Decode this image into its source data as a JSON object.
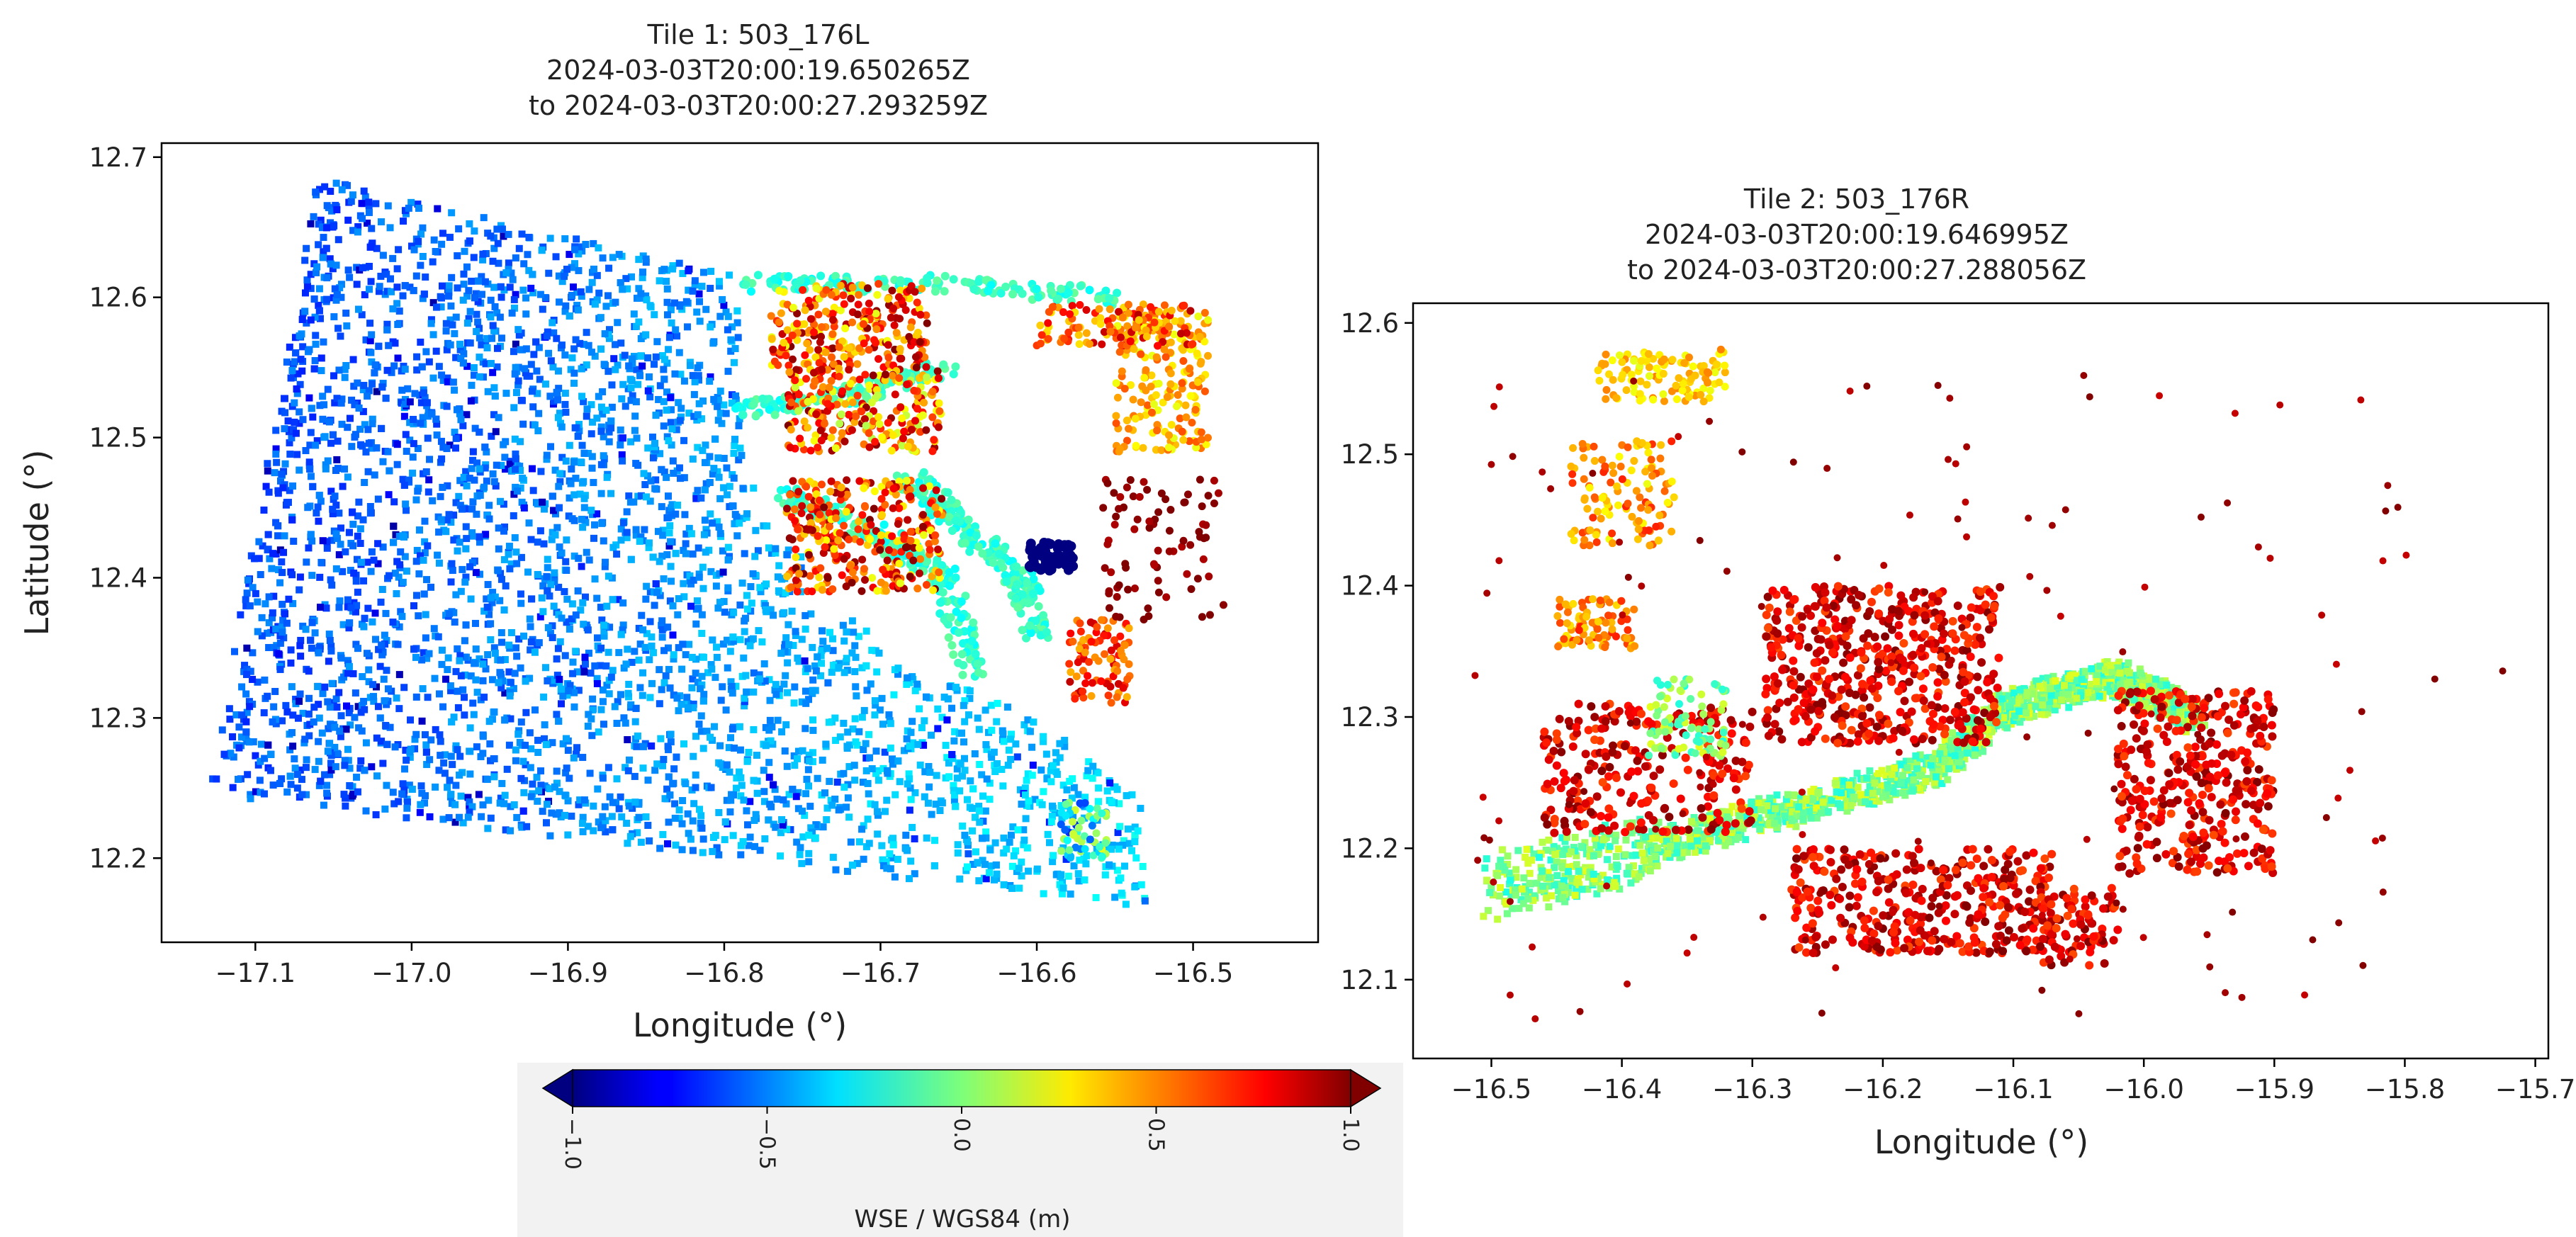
{
  "chart_data": [
    {
      "type": "scatter",
      "title": [
        "Tile 1: 503_176L",
        "2024-03-03T20:00:19.650265Z",
        "to 2024-03-03T20:00:27.293259Z"
      ],
      "xlabel": "Longitude (°)",
      "ylabel": "Latitude (°)",
      "xlim": [
        -17.16,
        -16.42
      ],
      "ylim": [
        12.14,
        12.71
      ],
      "xticks": [
        -17.1,
        -17.0,
        -16.9,
        -16.8,
        -16.7,
        -16.6,
        -16.5
      ],
      "xtick_labels": [
        "−17.1",
        "−17.0",
        "−16.9",
        "−16.8",
        "−16.7",
        "−16.6",
        "−16.5"
      ],
      "yticks": [
        12.2,
        12.3,
        12.4,
        12.5,
        12.6,
        12.7
      ],
      "ytick_labels": [
        "12.2",
        "12.3",
        "12.4",
        "12.5",
        "12.6",
        "12.7"
      ],
      "grid": false,
      "swath_extent": [
        [
          -17.06,
          12.685
        ],
        [
          -16.53,
          12.585
        ],
        [
          -16.53,
          12.165
        ],
        [
          -17.13,
          12.245
        ]
      ],
      "ocean_wse_range": [
        -0.7,
        -0.2
      ]
    },
    {
      "type": "scatter",
      "title": [
        "Tile 2: 503_176R",
        "2024-03-03T20:00:19.646995Z",
        "to 2024-03-03T20:00:27.288056Z"
      ],
      "xlabel": "Longitude (°)",
      "ylabel": "",
      "xlim": [
        -16.56,
        -15.69
      ],
      "ylim": [
        12.04,
        12.615
      ],
      "xticks": [
        -16.5,
        -16.4,
        -16.3,
        -16.2,
        -16.1,
        -16.0,
        -15.9,
        -15.8,
        -15.7
      ],
      "xtick_labels": [
        "−16.5",
        "−16.4",
        "−16.3",
        "−16.2",
        "−16.1",
        "−16.0",
        "−15.9",
        "−15.8",
        "−15.7"
      ],
      "yticks": [
        12.1,
        12.2,
        12.3,
        12.4,
        12.5,
        12.6
      ],
      "ytick_labels": [
        "12.1",
        "12.2",
        "12.3",
        "12.4",
        "12.5",
        "12.6"
      ],
      "grid": false,
      "estuary_wse_range": [
        -0.2,
        0.2
      ],
      "land_wse_range": [
        0.6,
        1.0
      ]
    }
  ],
  "colorbar": {
    "label": "WSE / WGS84 (m)",
    "colormap": "jet",
    "range": [
      -1.0,
      1.0
    ],
    "extend": "both",
    "ticks": [
      -1.0,
      -0.5,
      0.0,
      0.5,
      1.0
    ],
    "tick_labels": [
      "−1.0",
      "−0.5",
      "0.0",
      "0.5",
      "1.0"
    ],
    "orientation": "horizontal",
    "tick_rotation_deg": 90
  }
}
